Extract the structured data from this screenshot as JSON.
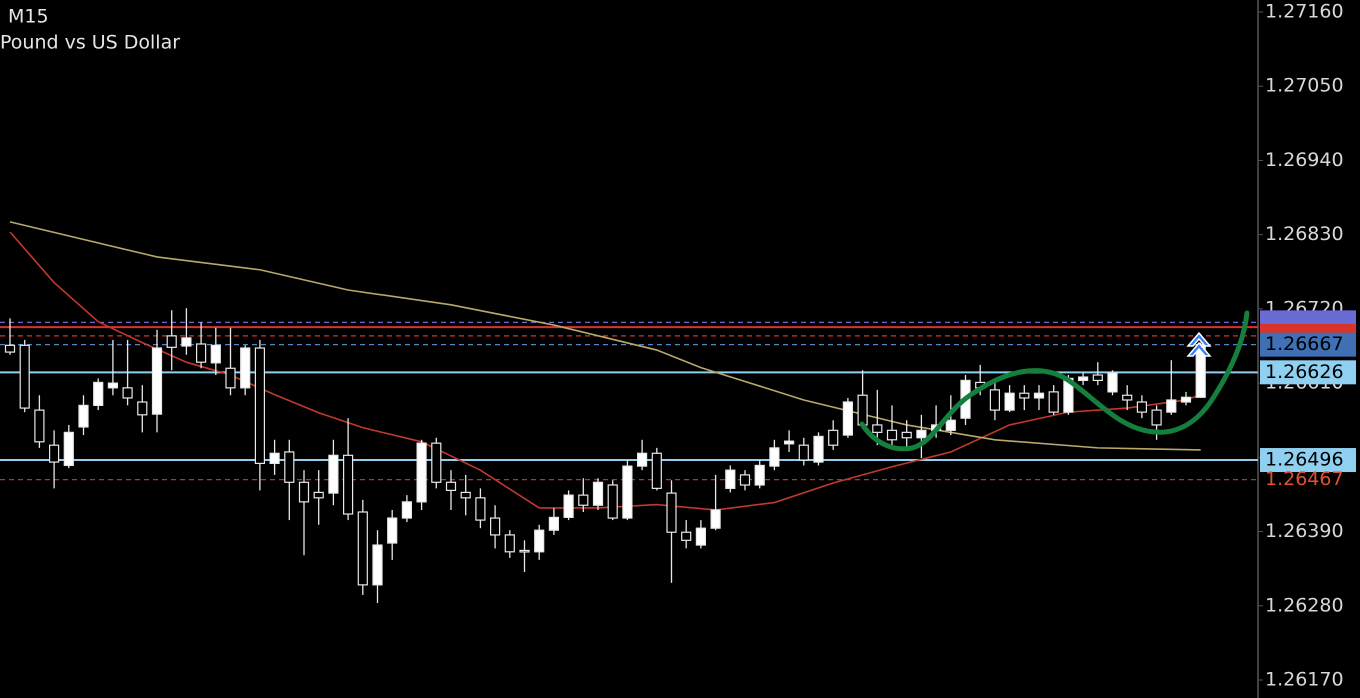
{
  "chart_data": {
    "type": "candlestick",
    "title": "M15",
    "subtitle": "Pound vs US Dollar",
    "up_color": "#ffffff",
    "down_color": "#000000",
    "ylim": [
      1.2617,
      1.2716
    ],
    "yticks": [
      {
        "value": 1.2716,
        "label": "1.27160"
      },
      {
        "value": 1.2705,
        "label": "1.27050"
      },
      {
        "value": 1.2694,
        "label": "1.26940"
      },
      {
        "value": 1.2683,
        "label": "1.26830"
      },
      {
        "value": 1.2672,
        "label": "1.26720"
      },
      {
        "value": 1.2661,
        "label": "1.26610"
      },
      {
        "value": 1.265,
        "label": "1.26500"
      },
      {
        "value": 1.2639,
        "label": "1.26390"
      },
      {
        "value": 1.2628,
        "label": "1.26280"
      },
      {
        "value": 1.2617,
        "label": "1.26170"
      }
    ],
    "open": [
      1.26666,
      1.26666,
      1.2657,
      1.26518,
      1.26488,
      1.26545,
      1.26577,
      1.26603,
      1.26603,
      1.26582,
      1.26564,
      1.2668,
      1.26665,
      1.26668,
      1.2664,
      1.26632,
      1.26603,
      1.26662,
      1.26491,
      1.26508,
      1.26463,
      1.26448,
      1.26447,
      1.26503,
      1.26419,
      1.26311,
      1.26373,
      1.2641,
      1.26434,
      1.26521,
      1.26463,
      1.26448,
      1.2644,
      1.2641,
      1.26385,
      1.26362,
      1.2636,
      1.26392,
      1.26411,
      1.26444,
      1.26429,
      1.26459,
      1.2641,
      1.26487,
      1.26506,
      1.26447,
      1.26389,
      1.2637,
      1.26395,
      1.26454,
      1.26474,
      1.26459,
      1.26487,
      1.2652,
      1.26518,
      1.26493,
      1.2654,
      1.26533,
      1.26592,
      1.26548,
      1.2654,
      1.26537,
      1.26529,
      1.2654,
      1.2654,
      1.26558,
      1.26611,
      1.266,
      1.2657,
      1.26595,
      1.26588,
      1.26597,
      1.26567,
      1.26614,
      1.26622,
      1.26597,
      1.26592,
      1.26582,
      1.2657,
      1.26567,
      1.26582,
      1.26589
    ],
    "high": [
      1.26706,
      1.26674,
      1.26592,
      1.2654,
      1.26548,
      1.26592,
      1.26617,
      1.26674,
      1.26674,
      1.26607,
      1.26689,
      1.26718,
      1.26721,
      1.267,
      1.26692,
      1.26692,
      1.26666,
      1.26674,
      1.26526,
      1.26526,
      1.26481,
      1.26481,
      1.26526,
      1.26558,
      1.26437,
      1.26392,
      1.26422,
      1.26444,
      1.26526,
      1.26529,
      1.26481,
      1.26474,
      1.26454,
      1.26429,
      1.26392,
      1.26377,
      1.264,
      1.26425,
      1.26451,
      1.26469,
      1.26469,
      1.26466,
      1.26496,
      1.26526,
      1.26514,
      1.26466,
      1.26407,
      1.26407,
      1.26474,
      1.26488,
      1.26481,
      1.26496,
      1.26526,
      1.2654,
      1.26529,
      1.26537,
      1.26555,
      1.26588,
      1.26629,
      1.266,
      1.26577,
      1.26555,
      1.26563,
      1.26577,
      1.26592,
      1.26622,
      1.26637,
      1.26611,
      1.26607,
      1.26607,
      1.26607,
      1.26607,
      1.26622,
      1.26626,
      1.26641,
      1.26629,
      1.26607,
      1.26592,
      1.26577,
      1.26644,
      1.26597,
      1.2667
    ],
    "low": [
      1.26652,
      1.26567,
      1.26514,
      1.26454,
      1.26484,
      1.26533,
      1.2657,
      1.26592,
      1.26577,
      1.26537,
      1.26537,
      1.26629,
      1.26652,
      1.26632,
      1.26622,
      1.26592,
      1.26592,
      1.26451,
      1.26474,
      1.26407,
      1.26355,
      1.264,
      1.26429,
      1.26407,
      1.26296,
      1.26284,
      1.26348,
      1.26404,
      1.26422,
      1.26454,
      1.26422,
      1.26414,
      1.26395,
      1.26365,
      1.26351,
      1.2633,
      1.26348,
      1.26385,
      1.26407,
      1.26419,
      1.26422,
      1.26407,
      1.26407,
      1.26481,
      1.26451,
      1.26314,
      1.26365,
      1.26365,
      1.26392,
      1.26448,
      1.26451,
      1.26454,
      1.26481,
      1.26508,
      1.26488,
      1.26488,
      1.26511,
      1.26529,
      1.26543,
      1.26518,
      1.26514,
      1.26511,
      1.26499,
      1.26529,
      1.26533,
      1.26548,
      1.26592,
      1.26555,
      1.26567,
      1.2657,
      1.2657,
      1.26563,
      1.26563,
      1.26607,
      1.26607,
      1.26592,
      1.2657,
      1.26558,
      1.26526,
      1.26563,
      1.26577,
      1.26588
    ],
    "close": [
      1.26656,
      1.26573,
      1.26523,
      1.26493,
      1.26537,
      1.26577,
      1.26611,
      1.2661,
      1.26588,
      1.26563,
      1.26662,
      1.26663,
      1.26677,
      1.26641,
      1.26666,
      1.26603,
      1.26662,
      1.26491,
      1.26506,
      1.26463,
      1.26434,
      1.2644,
      1.26503,
      1.26416,
      1.26311,
      1.2637,
      1.2641,
      1.26434,
      1.26521,
      1.26463,
      1.26451,
      1.2644,
      1.26407,
      1.26385,
      1.2636,
      1.2636,
      1.26392,
      1.26411,
      1.26444,
      1.26429,
      1.26463,
      1.2641,
      1.26487,
      1.26506,
      1.26454,
      1.26389,
      1.26377,
      1.26395,
      1.26422,
      1.26481,
      1.26459,
      1.26488,
      1.26514,
      1.26524,
      1.26496,
      1.26531,
      1.26518,
      1.26582,
      1.26548,
      1.26537,
      1.26526,
      1.26529,
      1.2654,
      1.26548,
      1.26555,
      1.26614,
      1.26603,
      1.2657,
      1.26595,
      1.26588,
      1.26595,
      1.26567,
      1.26617,
      1.26619,
      1.26614,
      1.26625,
      1.26585,
      1.26567,
      1.26548,
      1.26585,
      1.26589,
      1.26667
    ],
    "series": [
      {
        "color": "#c0392b",
        "x": [
          0,
          3,
          6,
          9,
          12,
          15,
          18,
          21,
          24,
          28,
          32,
          36,
          40,
          44,
          48,
          52,
          56,
          60,
          64,
          68,
          72,
          76,
          80,
          81
        ],
        "values": [
          1.26834,
          1.26759,
          1.26701,
          1.2667,
          1.26641,
          1.26622,
          1.26593,
          1.26566,
          1.26544,
          1.26523,
          1.26481,
          1.26425,
          1.26425,
          1.2643,
          1.26422,
          1.26433,
          1.26462,
          1.26486,
          1.26508,
          1.26548,
          1.26567,
          1.26573,
          1.26585,
          1.26593
        ]
      },
      {
        "color": "#b8a86a",
        "x": [
          0,
          10,
          17,
          23,
          30,
          37,
          44,
          47,
          54,
          61,
          67,
          74,
          81
        ],
        "values": [
          1.26849,
          1.26797,
          1.26778,
          1.26748,
          1.26726,
          1.26696,
          1.26659,
          1.26633,
          1.26585,
          1.26548,
          1.26526,
          1.26514,
          1.26511
        ]
      }
    ],
    "levels": [
      {
        "value": 1.26693,
        "color": "#d9342b",
        "style": "solid"
      },
      {
        "value": 1.267,
        "color": "#6b6bd6",
        "style": "dashed"
      },
      {
        "value": 1.2668,
        "color": "#d9342b",
        "style": "dashed"
      },
      {
        "value": 1.26667,
        "label": "1.26667",
        "color": "#5b80c8",
        "style": "dashed",
        "label_bg": "#3f6fb5",
        "label_color": "#000000"
      },
      {
        "value": 1.26626,
        "label": "1.26626",
        "color": "#8fd0f0",
        "style": "solid",
        "label_bg": "#8fd0f0",
        "label_color": "#000000"
      },
      {
        "value": 1.26496,
        "label": "1.26496",
        "color": "#8fd0f0",
        "style": "solid",
        "label_bg": "#8fd0f0",
        "label_color": "#000000"
      },
      {
        "value": 1.26467,
        "label": "1.26467",
        "color": "#b0372e",
        "style": "dashed",
        "label_color": "#e0502f"
      }
    ]
  }
}
